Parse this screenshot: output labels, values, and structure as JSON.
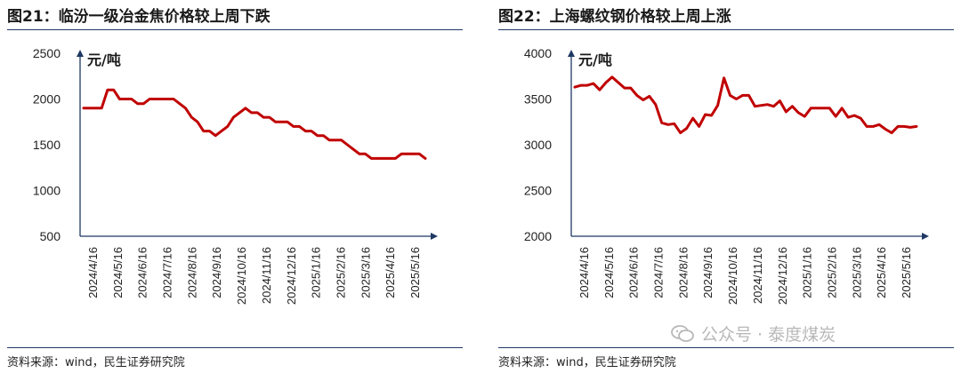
{
  "charts": [
    {
      "title": "图21：临汾一级冶金焦价格较上周下跌",
      "source": "资料来源：wind，民生证券研究院"
    },
    {
      "title": "图22：上海螺纹钢价格较上周上涨",
      "source": "资料来源：wind，民生证券研究院"
    }
  ],
  "watermark": {
    "text": "公众号 · 泰度煤炭",
    "icon": "wechat-icon"
  },
  "colors": {
    "series": "#c00000",
    "axis": "#1f3864",
    "text": "#222222"
  },
  "chart_data": [
    {
      "type": "line",
      "title": "",
      "xlabel": "",
      "ylabel": "元/吨",
      "ylim": [
        500,
        2500
      ],
      "yticks": [
        500,
        1000,
        1500,
        2000,
        2500
      ],
      "x_ticks": [
        "2024/4/16",
        "2024/5/16",
        "2024/6/16",
        "2024/7/16",
        "2024/8/16",
        "2024/9/16",
        "2024/10/16",
        "2024/11/16",
        "2024/12/16",
        "2025/1/16",
        "2025/2/16",
        "2025/3/16",
        "2025/4/16",
        "2025/5/16"
      ],
      "grid": false,
      "series": [
        {
          "values": [
            1900,
            1900,
            1900,
            1900,
            2100,
            2100,
            2000,
            2000,
            2000,
            1950,
            1950,
            2000,
            2000,
            2000,
            2000,
            2000,
            1950,
            1900,
            1800,
            1750,
            1650,
            1650,
            1600,
            1650,
            1700,
            1800,
            1850,
            1900,
            1850,
            1850,
            1800,
            1800,
            1750,
            1750,
            1750,
            1700,
            1700,
            1650,
            1650,
            1600,
            1600,
            1550,
            1550,
            1550,
            1500,
            1450,
            1400,
            1400,
            1350,
            1350,
            1350,
            1350,
            1350,
            1400,
            1400,
            1400,
            1400,
            1350
          ]
        }
      ]
    },
    {
      "type": "line",
      "title": "",
      "xlabel": "",
      "ylabel": "元/吨",
      "ylim": [
        2000,
        4000
      ],
      "yticks": [
        2000,
        2500,
        3000,
        3500,
        4000
      ],
      "x_ticks": [
        "2024/4/16",
        "2024/5/16",
        "2024/6/16",
        "2024/7/16",
        "2024/8/16",
        "2024/9/16",
        "2024/10/16",
        "2024/11/16",
        "2024/12/16",
        "2025/1/16",
        "2025/2/16",
        "2025/3/16",
        "2025/4/16",
        "2025/5/16"
      ],
      "grid": false,
      "series": [
        {
          "values": [
            3630,
            3650,
            3650,
            3670,
            3600,
            3680,
            3740,
            3680,
            3620,
            3620,
            3540,
            3490,
            3530,
            3440,
            3240,
            3220,
            3230,
            3130,
            3180,
            3290,
            3200,
            3330,
            3320,
            3430,
            3730,
            3540,
            3500,
            3540,
            3540,
            3420,
            3430,
            3440,
            3420,
            3480,
            3360,
            3420,
            3350,
            3310,
            3400,
            3400,
            3400,
            3400,
            3310,
            3400,
            3300,
            3320,
            3290,
            3200,
            3200,
            3220,
            3170,
            3130,
            3200,
            3200,
            3190,
            3200
          ]
        }
      ]
    }
  ]
}
